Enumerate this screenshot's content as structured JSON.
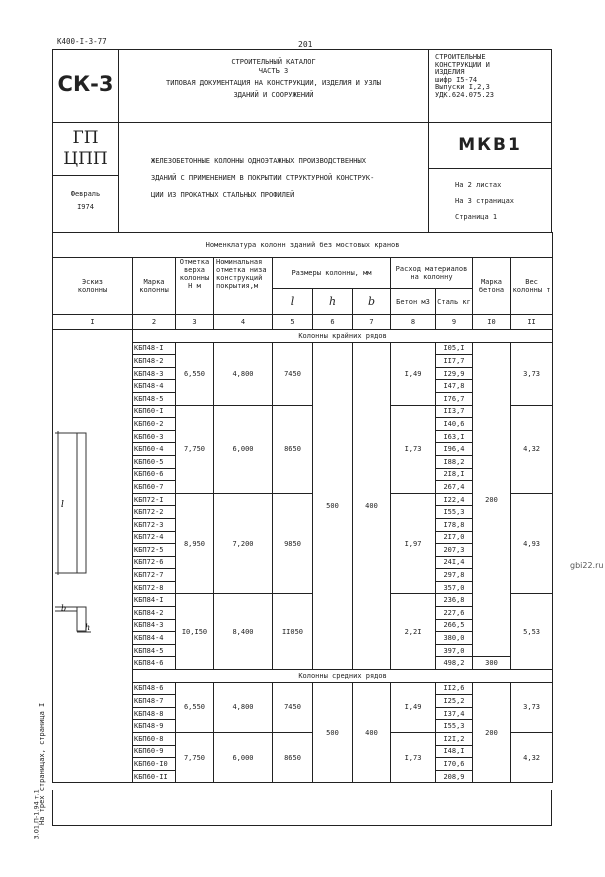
{
  "doc_code": "К400-I-3-77",
  "page_number": "201",
  "header": {
    "series": "СК-3",
    "catalog_lines": [
      "СТРОИТЕЛЬНЫЙ КАТАЛОГ",
      "ЧАСТЬ 3",
      "ТИПОВАЯ ДОКУМЕНТАЦИЯ НА КОНСТРУКЦИИ, ИЗДЕЛИЯ И УЗЛЫ",
      "ЗДАНИЙ И СООРУЖЕНИЙ"
    ],
    "right_lines": [
      "СТРОИТЕЛЬНЫЕ",
      "КОНСТРУКЦИИ И",
      "ИЗДЕЛИЯ",
      "шифр I5-74",
      "Выпуски I,2,3",
      "УДК.624.075.23"
    ],
    "org_lines": [
      "ГП",
      "ЦПП"
    ],
    "date_lines": [
      "Февраль",
      "I974"
    ],
    "title_lines": [
      "ЖЕЛЕЗОБЕТОННЫЕ КОЛОННЫ ОДНОЭТАЖНЫХ ПРОИЗВОДСТВЕННЫХ",
      "ЗДАНИЙ С ПРИМЕНЕНИЕМ В ПОКРЫТИИ СТРУКТУРНОЙ КОНСТРУК-",
      "ЦИИ ИЗ ПРОКАТНЫХ СТАЛЬНЫХ ПРОФИЛЕЙ"
    ],
    "code": "МКВ1",
    "sheet_lines": [
      "На 2 листах",
      "На 3 страницах",
      "Страница 1"
    ]
  },
  "table": {
    "title": "Номенклатура колонн зданий без мостовых кранов",
    "headers": {
      "sketch": "Эскиз колонны",
      "mark": "Марка колонны",
      "top_mark": "Отметка верха колонны Н м",
      "nominal": "Номинальная отметка низа конструкций покрытия,м",
      "sizes": "Размеры колонны, мм",
      "size_l": "l",
      "size_h": "h",
      "size_b": "b",
      "materials": "Расход материалов на колонну",
      "concrete": "Бетон м3",
      "steel": "Сталь кг",
      "concrete_grade": "Марка бетона",
      "weight": "Вес колонны т"
    },
    "col_numbers": [
      "I",
      "2",
      "3",
      "4",
      "5",
      "6",
      "7",
      "8",
      "9",
      "I0",
      "II"
    ],
    "sections": [
      {
        "title": "Колонны крайних рядов",
        "h": "500",
        "b": "400",
        "groups": [
          {
            "top": "6,550",
            "nominal": "4,800",
            "l": "7450",
            "concrete": "I,49",
            "weight": "3,73",
            "rows": [
              [
                "КБП48-I",
                "I05,I"
              ],
              [
                "КБП48-2",
                "II7,7"
              ],
              [
                "КБП48-3",
                "I29,9"
              ],
              [
                "КБП48-4",
                "I47,8"
              ],
              [
                "КБП48-5",
                "I76,7"
              ]
            ]
          },
          {
            "top": "7,750",
            "nominal": "6,000",
            "l": "8650",
            "concrete": "I,73",
            "weight": "4,32",
            "rows": [
              [
                "КБП60-I",
                "II3,7"
              ],
              [
                "КБП60-2",
                "I40,6"
              ],
              [
                "КБП60-3",
                "I63,I"
              ],
              [
                "КБП60-4",
                "I96,4"
              ],
              [
                "КБП60-5",
                "I88,2"
              ],
              [
                "КБП60-6",
                "2I8,I"
              ],
              [
                "КБП60-7",
                "267,4"
              ]
            ]
          },
          {
            "top": "8,950",
            "nominal": "7,200",
            "l": "9850",
            "concrete": "I,97",
            "weight": "4,93",
            "rows": [
              [
                "КБП72-I",
                "I22,4"
              ],
              [
                "КБП72-2",
                "I55,3"
              ],
              [
                "КБП72-3",
                "I78,8"
              ],
              [
                "КБП72-4",
                "2I7,0"
              ],
              [
                "КБП72-5",
                "207,3"
              ],
              [
                "КБП72-6",
                "24I,4"
              ],
              [
                "КБП72-7",
                "297,8"
              ],
              [
                "КБП72-8",
                "357,0"
              ]
            ]
          },
          {
            "top": "I0,I50",
            "nominal": "8,400",
            "l": "II050",
            "concrete": "2,2I",
            "weight": "5,53",
            "rows": [
              [
                "КБП84-I",
                "236,8"
              ],
              [
                "КБП84-2",
                "227,6"
              ],
              [
                "КБП84-3",
                "266,5"
              ],
              [
                "КБП84-4",
                "380,0"
              ],
              [
                "КБП84-5",
                "397,0"
              ],
              [
                "КБП84-6",
                "498,2"
              ]
            ]
          }
        ],
        "grade_main": "200",
        "grade_last": "300"
      },
      {
        "title": "Колонны средних рядов",
        "h": "500",
        "b": "400",
        "grade_main": "200",
        "groups": [
          {
            "top": "6,550",
            "nominal": "4,800",
            "l": "7450",
            "concrete": "I,49",
            "weight": "3,73",
            "rows": [
              [
                "КБП48-6",
                "II2,6"
              ],
              [
                "КБП48-7",
                "I25,2"
              ],
              [
                "КБП48-8",
                "I37,4"
              ],
              [
                "КБП48-9",
                "I55,3"
              ]
            ]
          },
          {
            "top": "7,750",
            "nominal": "6,000",
            "l": "8650",
            "concrete": "I,73",
            "weight": "4,32",
            "rows": [
              [
                "КБП60-8",
                "I2I,2"
              ],
              [
                "КБП60-9",
                "I48,I"
              ],
              [
                "КБП60-I0",
                "I70,6"
              ],
              [
                "КБП60-II",
                "208,9"
              ]
            ]
          }
        ]
      }
    ]
  },
  "sketch_labels": {
    "l": "l",
    "b": "b",
    "h": "h"
  },
  "margin_text": {
    "code": "3.01.П-1.94 т.1",
    "note": "На трех страницах, страница I"
  },
  "watermark": "gbi22.ru"
}
